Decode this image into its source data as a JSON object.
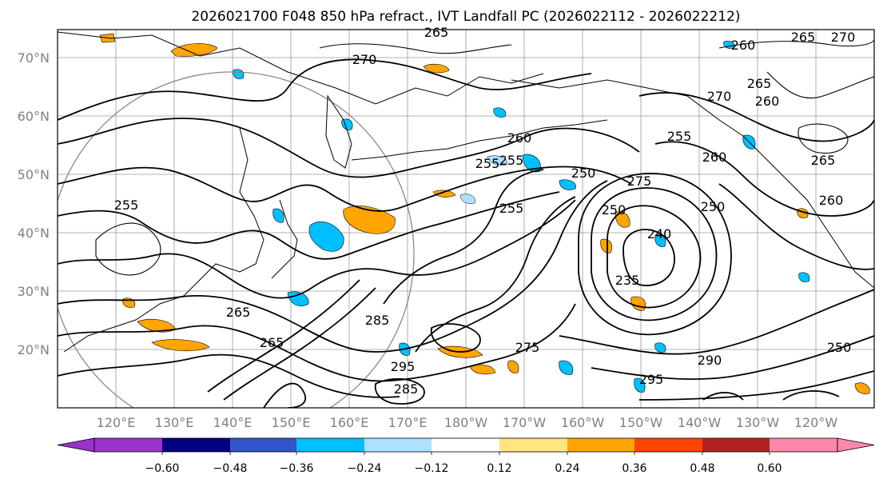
{
  "title": "2026021700 F048 850 hPa refract., IVT Landfall PC (2026022112 - 2026022212)",
  "lat_labels": [
    "70°N",
    "60°N",
    "50°N",
    "40°N",
    "30°N",
    "20°N"
  ],
  "lon_labels": [
    "120°E",
    "130°E",
    "140°E",
    "150°E",
    "160°E",
    "170°E",
    "180°W",
    "170°W",
    "160°W",
    "150°W",
    "140°W",
    "130°W",
    "120°W"
  ],
  "colorbar": {
    "colors": [
      "#9933cc",
      "#000080",
      "#3355cc",
      "#00bfff",
      "#aee0ff",
      "#ffffff",
      "#ffe680",
      "#ffa500",
      "#ff4400",
      "#b22222",
      "#ff88aa"
    ],
    "extend_low_color": "#9933cc",
    "extend_high_color": "#ff88aa",
    "tick_labels": [
      "−0.60",
      "−0.48",
      "−0.36",
      "−0.24",
      "−0.12",
      "0.12",
      "0.24",
      "0.36",
      "0.48",
      "0.60"
    ]
  },
  "contour_labels": [
    "265",
    "270",
    "260",
    "265",
    "270",
    "260",
    "255",
    "260",
    "255",
    "250",
    "260",
    "255",
    "250",
    "275",
    "250",
    "240",
    "235",
    "265",
    "295",
    "290",
    "285",
    "295",
    "255",
    "265",
    "275",
    "285",
    "250",
    "265",
    "260",
    "255",
    "270",
    "265"
  ]
}
